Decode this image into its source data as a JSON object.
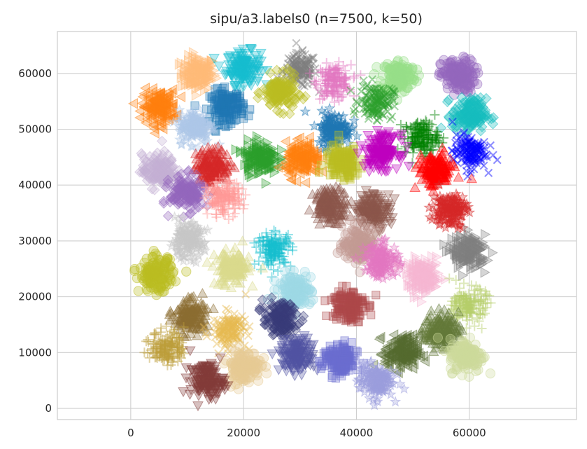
{
  "chart_data": {
    "type": "scatter",
    "title": "sipu/a3.labels0 (n=7500, k=50)",
    "xlabel": "",
    "ylabel": "",
    "xlim": [
      -13000,
      79000
    ],
    "ylim": [
      -2000,
      67500
    ],
    "x_ticks": [
      0,
      20000,
      40000,
      60000
    ],
    "y_ticks": [
      0,
      10000,
      20000,
      30000,
      40000,
      50000,
      60000
    ],
    "x_tick_labels": [
      "0",
      "20000",
      "40000",
      "60000"
    ],
    "y_tick_labels": [
      "0",
      "10000",
      "20000",
      "30000",
      "40000",
      "50000",
      "60000"
    ],
    "grid": true,
    "legend": "none",
    "points_per_cluster": 150,
    "clusters": [
      {
        "cx": 12000,
        "cy": 60000,
        "color": "#ffbb78",
        "marker": "triangle-right"
      },
      {
        "cx": 20000,
        "cy": 61000,
        "color": "#17becf",
        "marker": "triangle-down"
      },
      {
        "cx": 30000,
        "cy": 60500,
        "color": "#7f7f7f",
        "marker": "x"
      },
      {
        "cx": 36000,
        "cy": 58500,
        "color": "#e377c2",
        "marker": "plus"
      },
      {
        "cx": 47500,
        "cy": 59500,
        "color": "#98df8a",
        "marker": "circle"
      },
      {
        "cx": 58000,
        "cy": 59500,
        "color": "#9467bd",
        "marker": "circle"
      },
      {
        "cx": 5000,
        "cy": 54000,
        "color": "#ff7f0e",
        "marker": "triangle-left"
      },
      {
        "cx": 17000,
        "cy": 54000,
        "color": "#1f77b4",
        "marker": "square"
      },
      {
        "cx": 26500,
        "cy": 56500,
        "color": "#bcbd22",
        "marker": "diamond"
      },
      {
        "cx": 43500,
        "cy": 55000,
        "color": "#2ca02c",
        "marker": "x"
      },
      {
        "cx": 60000,
        "cy": 52500,
        "color": "#17bebf",
        "marker": "diamond"
      },
      {
        "cx": 11500,
        "cy": 50500,
        "color": "#aec7e8",
        "marker": "star"
      },
      {
        "cx": 36000,
        "cy": 50000,
        "color": "#1f77b4",
        "marker": "star"
      },
      {
        "cx": 51500,
        "cy": 48500,
        "color": "#008000",
        "marker": "plus"
      },
      {
        "cx": 60000,
        "cy": 46000,
        "color": "#0000ff",
        "marker": "x"
      },
      {
        "cx": 5000,
        "cy": 42500,
        "color": "#c5b0d5",
        "marker": "diamond"
      },
      {
        "cx": 14500,
        "cy": 43500,
        "color": "#d62728",
        "marker": "triangle-up"
      },
      {
        "cx": 23000,
        "cy": 45000,
        "color": "#2ca02c",
        "marker": "triangle-right"
      },
      {
        "cx": 30500,
        "cy": 44500,
        "color": "#ff7f0e",
        "marker": "triangle-left"
      },
      {
        "cx": 37500,
        "cy": 44000,
        "color": "#bcbd22",
        "marker": "square"
      },
      {
        "cx": 44500,
        "cy": 46000,
        "color": "#bf00bf",
        "marker": "triangle-down"
      },
      {
        "cx": 54000,
        "cy": 42500,
        "color": "#ff0000",
        "marker": "triangle-up"
      },
      {
        "cx": 10000,
        "cy": 38500,
        "color": "#9467bd",
        "marker": "diamond"
      },
      {
        "cx": 16500,
        "cy": 37500,
        "color": "#ff9896",
        "marker": "plus"
      },
      {
        "cx": 35500,
        "cy": 36500,
        "color": "#8c564b",
        "marker": "triangle-up"
      },
      {
        "cx": 43000,
        "cy": 35500,
        "color": "#8c564b",
        "marker": "triangle-down"
      },
      {
        "cx": 56500,
        "cy": 35500,
        "color": "#d62728",
        "marker": "star"
      },
      {
        "cx": 10000,
        "cy": 30000,
        "color": "#c7c7c7",
        "marker": "star"
      },
      {
        "cx": 25500,
        "cy": 28500,
        "color": "#17becf",
        "marker": "plus"
      },
      {
        "cx": 40500,
        "cy": 29500,
        "color": "#c49c94",
        "marker": "circle"
      },
      {
        "cx": 60000,
        "cy": 28000,
        "color": "#7f7f7f",
        "marker": "triangle-right"
      },
      {
        "cx": 4500,
        "cy": 24000,
        "color": "#bcbd22",
        "marker": "circle"
      },
      {
        "cx": 18000,
        "cy": 25000,
        "color": "#dbdb8d",
        "marker": "triangle-up"
      },
      {
        "cx": 44500,
        "cy": 26500,
        "color": "#e377c2",
        "marker": "star"
      },
      {
        "cx": 52000,
        "cy": 23500,
        "color": "#f7b6d2",
        "marker": "triangle-right"
      },
      {
        "cx": 29000,
        "cy": 21000,
        "color": "#9edae5",
        "marker": "circle"
      },
      {
        "cx": 38500,
        "cy": 18500,
        "color": "#ad494a",
        "marker": "square"
      },
      {
        "cx": 60000,
        "cy": 18500,
        "color": "#b5cf6b",
        "marker": "plus"
      },
      {
        "cx": 10500,
        "cy": 16500,
        "color": "#8c6d31",
        "marker": "triangle-up"
      },
      {
        "cx": 17500,
        "cy": 14000,
        "color": "#e7ba52",
        "marker": "x"
      },
      {
        "cx": 26500,
        "cy": 16000,
        "color": "#393b79",
        "marker": "diamond"
      },
      {
        "cx": 55000,
        "cy": 14000,
        "color": "#637939",
        "marker": "triangle-up"
      },
      {
        "cx": 6500,
        "cy": 11000,
        "color": "#bd9e39",
        "marker": "plus"
      },
      {
        "cx": 29500,
        "cy": 9500,
        "color": "#5254a3",
        "marker": "triangle-down"
      },
      {
        "cx": 37000,
        "cy": 8500,
        "color": "#6b6ecf",
        "marker": "square"
      },
      {
        "cx": 48000,
        "cy": 10000,
        "color": "#556b2f",
        "marker": "triangle-left"
      },
      {
        "cx": 59500,
        "cy": 9500,
        "color": "#cedb9c",
        "marker": "circle"
      },
      {
        "cx": 20000,
        "cy": 7500,
        "color": "#e7cb94",
        "marker": "circle"
      },
      {
        "cx": 13500,
        "cy": 5000,
        "color": "#843c39",
        "marker": "triangle-down"
      },
      {
        "cx": 43500,
        "cy": 5000,
        "color": "#9c9ede",
        "marker": "star"
      }
    ]
  }
}
